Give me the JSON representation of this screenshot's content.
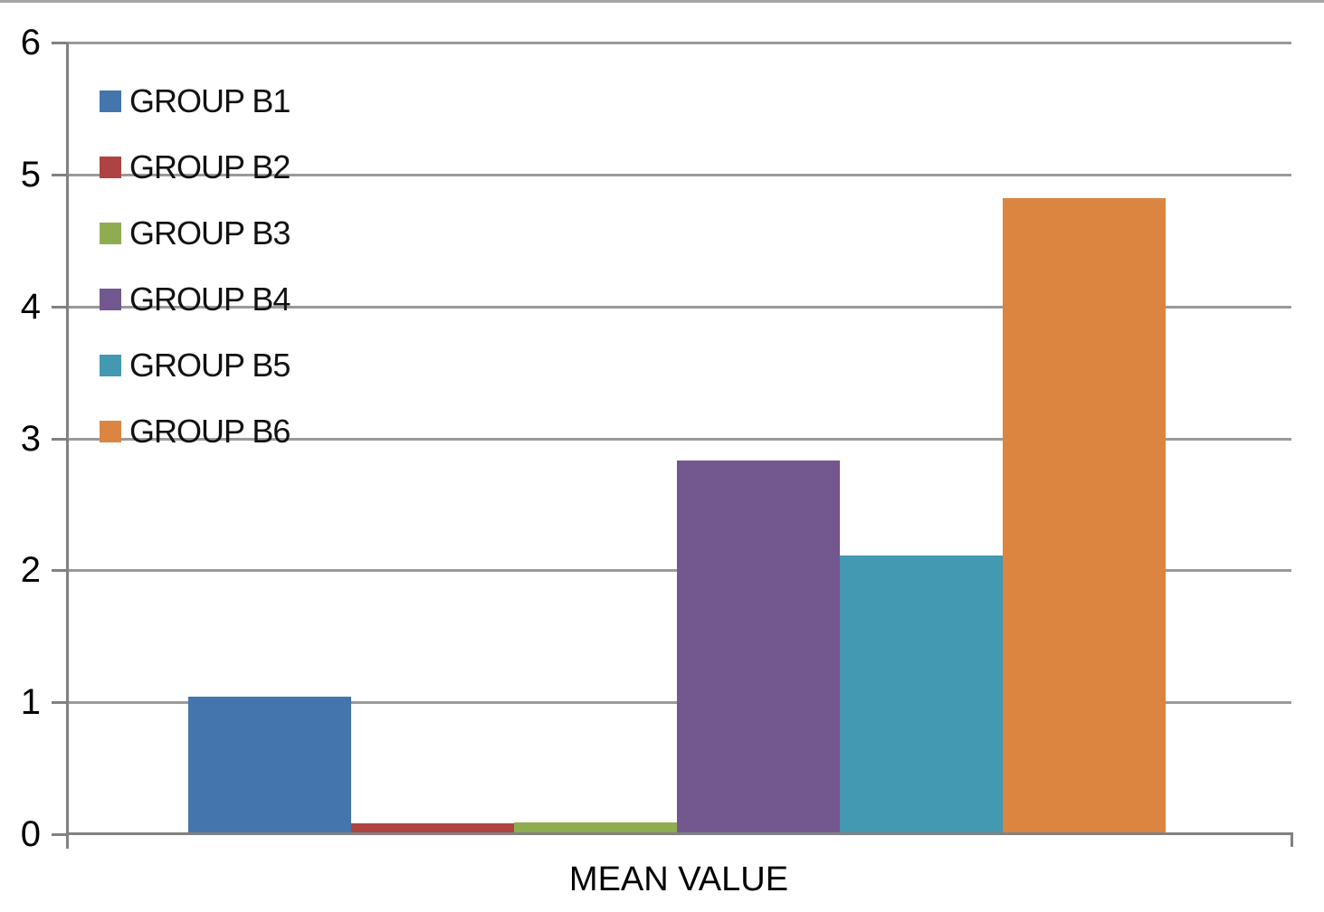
{
  "chart_data": {
    "type": "bar",
    "title": "",
    "xlabel": "MEAN VALUE",
    "ylabel": "",
    "series": [
      {
        "name": "GROUP B1",
        "value": 1.04,
        "color": "#4575AD"
      },
      {
        "name": "GROUP B2",
        "value": 0.08,
        "color": "#AF4341"
      },
      {
        "name": "GROUP B3",
        "value": 0.09,
        "color": "#8FAC51"
      },
      {
        "name": "GROUP B4",
        "value": 2.83,
        "color": "#72588F"
      },
      {
        "name": "GROUP B5",
        "value": 2.11,
        "color": "#4398B2"
      },
      {
        "name": "GROUP B6",
        "value": 4.82,
        "color": "#DC8540"
      }
    ],
    "ylim": [
      0,
      6
    ],
    "yticks": [
      0,
      1,
      2,
      3,
      4,
      5,
      6
    ],
    "grid": "horizontal-only",
    "legend_position": "top-left",
    "grid_color": "#9a9a9a",
    "axis_color": "#818181"
  }
}
